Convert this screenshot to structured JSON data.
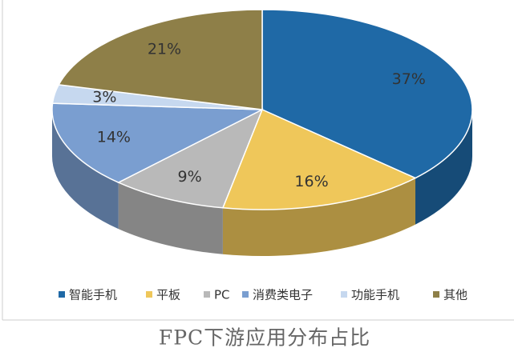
{
  "chart_data": {
    "type": "pie",
    "title": "FPC下游应用分布占比",
    "categories": [
      "智能手机",
      "平板",
      "PC",
      "消费类电子",
      "功能手机",
      "其他"
    ],
    "values": [
      37,
      16,
      9,
      14,
      3,
      21
    ],
    "value_labels": [
      "37%",
      "16%",
      "9%",
      "14%",
      "3%",
      "21%"
    ],
    "colors": [
      "#1f69a6",
      "#efc75a",
      "#b9b9b9",
      "#7a9ed0",
      "#c6d8ef",
      "#8e7f48"
    ],
    "legend": "bottom"
  }
}
